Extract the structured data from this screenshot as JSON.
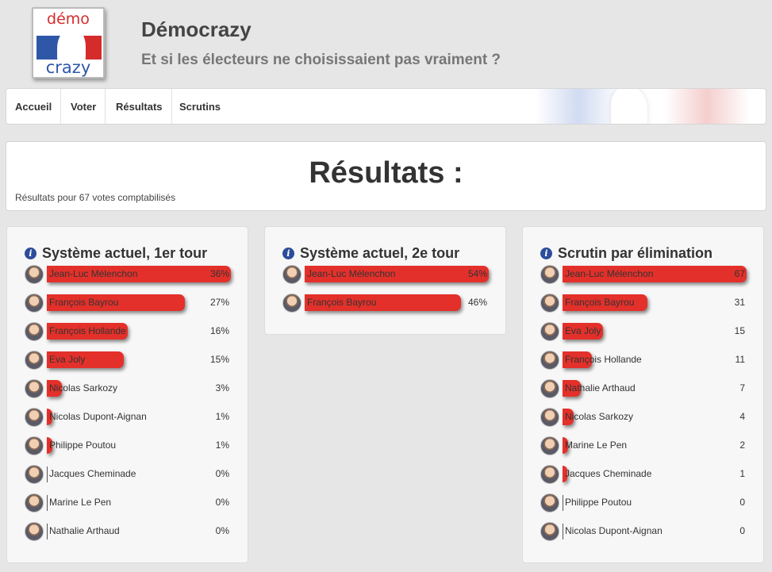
{
  "logo": {
    "top_word": "démo",
    "bottom_word": "crazy"
  },
  "header": {
    "title": "Démocrazy",
    "tagline": "Et si les électeurs ne choisissaient pas vraiment ?"
  },
  "nav": {
    "items": [
      {
        "label": "Accueil"
      },
      {
        "label": "Voter"
      },
      {
        "label": "Résultats"
      },
      {
        "label": "Scrutins"
      }
    ]
  },
  "results": {
    "heading": "Résultats :",
    "count_text": "Résultats pour 67 votes comptabilisés"
  },
  "colors": {
    "bar": "#e4302a",
    "info_icon": "#2c4d9a"
  },
  "panels": [
    {
      "title": "Système actuel, 1er tour",
      "icon": "info-icon",
      "rows": [
        {
          "name": "Jean-Luc Mélenchon",
          "value": "36%",
          "fraction": 1.0
        },
        {
          "name": "François Bayrou",
          "value": "27%",
          "fraction": 0.75
        },
        {
          "name": "François Hollande",
          "value": "16%",
          "fraction": 0.44
        },
        {
          "name": "Eva Joly",
          "value": "15%",
          "fraction": 0.42
        },
        {
          "name": "Nicolas Sarkozy",
          "value": "3%",
          "fraction": 0.08
        },
        {
          "name": "Nicolas Dupont-Aignan",
          "value": "1%",
          "fraction": 0.03
        },
        {
          "name": "Philippe Poutou",
          "value": "1%",
          "fraction": 0.03
        },
        {
          "name": "Jacques Cheminade",
          "value": "0%",
          "fraction": 0
        },
        {
          "name": "Marine Le Pen",
          "value": "0%",
          "fraction": 0
        },
        {
          "name": "Nathalie Arthaud",
          "value": "0%",
          "fraction": 0
        }
      ]
    },
    {
      "title": "Système actuel, 2e tour",
      "icon": "info-icon",
      "rows": [
        {
          "name": "Jean-Luc Mélenchon",
          "value": "54%",
          "fraction": 1.0
        },
        {
          "name": "François Bayrou",
          "value": "46%",
          "fraction": 0.85
        }
      ]
    },
    {
      "title": "Scrutin par élimination",
      "icon": "info-icon",
      "rows": [
        {
          "name": "Jean-Luc Mélenchon",
          "value": "67",
          "fraction": 1.0
        },
        {
          "name": "François Bayrou",
          "value": "31",
          "fraction": 0.46
        },
        {
          "name": "Eva Joly",
          "value": "15",
          "fraction": 0.22
        },
        {
          "name": "François Hollande",
          "value": "11",
          "fraction": 0.16
        },
        {
          "name": "Nathalie Arthaud",
          "value": "7",
          "fraction": 0.1
        },
        {
          "name": "Nicolas Sarkozy",
          "value": "4",
          "fraction": 0.06
        },
        {
          "name": "Marine Le Pen",
          "value": "2",
          "fraction": 0.03
        },
        {
          "name": "Jacques Cheminade",
          "value": "1",
          "fraction": 0.015
        },
        {
          "name": "Philippe Poutou",
          "value": "0",
          "fraction": 0
        },
        {
          "name": "Nicolas Dupont-Aignan",
          "value": "0",
          "fraction": 0
        }
      ]
    }
  ]
}
